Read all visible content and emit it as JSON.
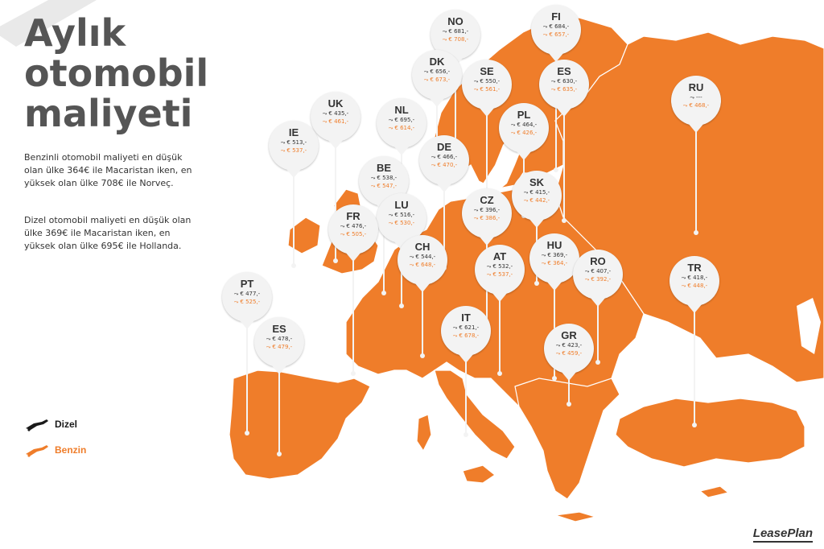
{
  "title": [
    "Aylık",
    "otomobil",
    "maliyeti"
  ],
  "description": [
    "Benzinli otomobil maliyeti en düşük olan ülke 364€ ile Macaristan iken, en yüksek olan ülke 708€ ile Norveç.",
    "Dizel otomobil maliyeti en düşük olan ülke 369€ ile Macaristan iken, en yüksek olan ülke 695€ ile Hollanda."
  ],
  "legend": {
    "diesel": {
      "label": "Dizel",
      "color": "#1a1a1a",
      "icon": "fuel-nozzle-icon"
    },
    "petrol": {
      "label": "Benzin",
      "color": "#ef7d2a",
      "icon": "fuel-nozzle-icon"
    }
  },
  "colors": {
    "map_fill": "#ef7d2a",
    "map_border": "#ffffff",
    "pin": "#f3f3f3",
    "title": "#555555"
  },
  "brand": "LeasePlan",
  "countries": [
    {
      "code": "NO",
      "diesel": "€ 681,-",
      "petrol": "€ 708,-"
    },
    {
      "code": "FI",
      "diesel": "€ 684,-",
      "petrol": "€ 657,-"
    },
    {
      "code": "DK",
      "diesel": "€ 656,-",
      "petrol": "€ 673,-"
    },
    {
      "code": "SE",
      "diesel": "€ 550,-",
      "petrol": "€ 561,-"
    },
    {
      "code": "ES",
      "diesel": "€ 630,-",
      "petrol": "€ 635,-"
    },
    {
      "code": "RU",
      "diesel": "---",
      "petrol": "€ 468,-"
    },
    {
      "code": "UK",
      "diesel": "€ 435,-",
      "petrol": "€ 461,-"
    },
    {
      "code": "NL",
      "diesel": "€ 695,-",
      "petrol": "€ 614,-"
    },
    {
      "code": "PL",
      "diesel": "€ 464,-",
      "petrol": "€ 426,-"
    },
    {
      "code": "IE",
      "diesel": "€ 513,-",
      "petrol": "€ 537,-"
    },
    {
      "code": "DE",
      "diesel": "€ 466,-",
      "petrol": "€ 470,-"
    },
    {
      "code": "BE",
      "diesel": "€ 538,-",
      "petrol": "€ 547,-"
    },
    {
      "code": "SK",
      "diesel": "€ 415,-",
      "petrol": "€ 442,-"
    },
    {
      "code": "CZ",
      "diesel": "€ 396,-",
      "petrol": "€ 386,-"
    },
    {
      "code": "LU",
      "diesel": "€ 516,-",
      "petrol": "€ 530,-"
    },
    {
      "code": "FR",
      "diesel": "€ 476,-",
      "petrol": "€ 505,-"
    },
    {
      "code": "HU",
      "diesel": "€ 369,-",
      "petrol": "€ 364,-"
    },
    {
      "code": "CH",
      "diesel": "€ 544,-",
      "petrol": "€ 648,-"
    },
    {
      "code": "AT",
      "diesel": "€ 532,-",
      "petrol": "€ 537,-"
    },
    {
      "code": "RO",
      "diesel": "€ 407,-",
      "petrol": "€ 392,-"
    },
    {
      "code": "TR",
      "diesel": "€ 418,-",
      "petrol": "€ 448,-"
    },
    {
      "code": "PT",
      "diesel": "€ 477,-",
      "petrol": "€ 525,-"
    },
    {
      "code": "IT",
      "diesel": "€ 621,-",
      "petrol": "€ 678,-"
    },
    {
      "code": "ES",
      "diesel": "€ 478,-",
      "petrol": "€ 479,-"
    },
    {
      "code": "GR",
      "diesel": "€ 423,-",
      "petrol": "€ 459,-"
    }
  ]
}
